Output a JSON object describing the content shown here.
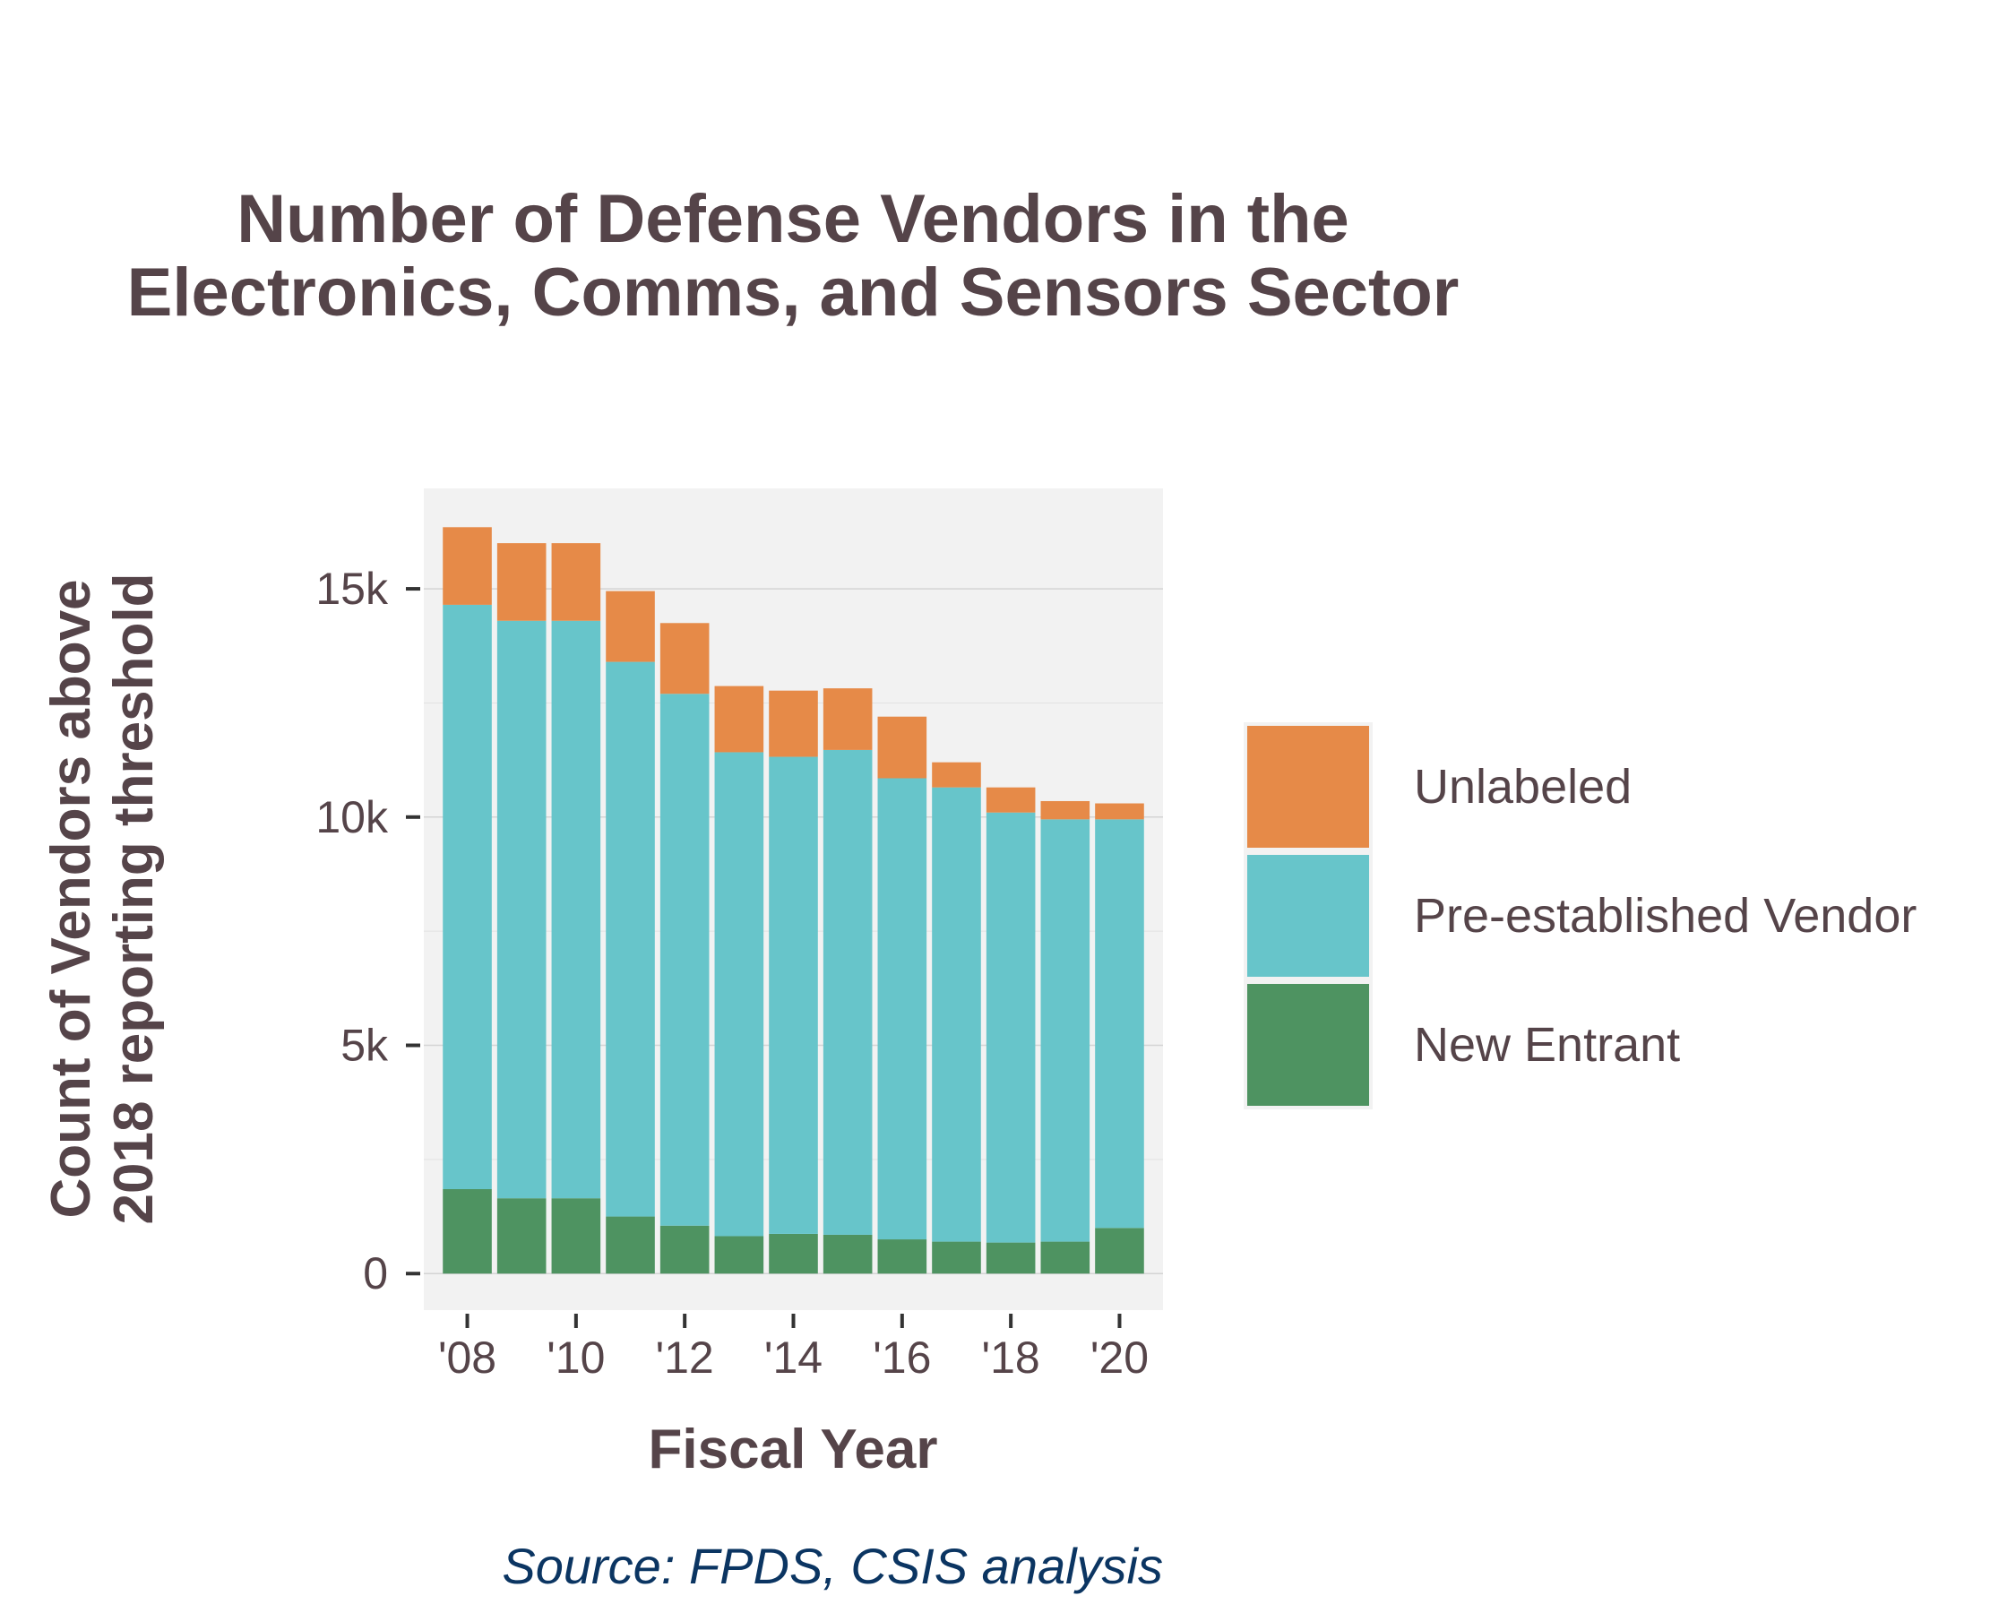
{
  "chart_data": {
    "type": "bar",
    "stacked": true,
    "title": [
      "Number of Defense Vendors in the",
      "Electronics, Comms, and Sensors Sector"
    ],
    "xlabel": "Fiscal Year",
    "ylabel": [
      "Count of Vendors above",
      "2018 reporting threshold"
    ],
    "caption": "Source: FPDS, CSIS analysis",
    "x": [
      2008,
      2009,
      2010,
      2011,
      2012,
      2013,
      2014,
      2015,
      2016,
      2017,
      2018,
      2019,
      2020
    ],
    "x_ticks": [
      2008,
      2010,
      2012,
      2014,
      2016,
      2018,
      2020
    ],
    "x_tick_labels": [
      "'08",
      "'10",
      "'12",
      "'14",
      "'16",
      "'18",
      "'20"
    ],
    "y_ticks": [
      0,
      5000,
      10000,
      15000
    ],
    "y_tick_labels": [
      "0",
      "5k",
      "10k",
      "15k"
    ],
    "ylim": [
      -800,
      17200
    ],
    "grid": true,
    "legend_position": "right",
    "series": [
      {
        "name": "New Entrant",
        "color": "#4e9361",
        "values": [
          1850,
          1650,
          1650,
          1250,
          1050,
          820,
          870,
          850,
          750,
          700,
          680,
          700,
          1000
        ]
      },
      {
        "name": "Pre-established Vendor",
        "color": "#67c5ca",
        "values": [
          12800,
          12650,
          12650,
          12150,
          11650,
          10600,
          10450,
          10620,
          10100,
          9950,
          9420,
          9250,
          8950
        ]
      },
      {
        "name": "Unlabeled",
        "color": "#e68a48",
        "values": [
          1700,
          1700,
          1700,
          1550,
          1550,
          1450,
          1450,
          1350,
          1350,
          550,
          550,
          400,
          350
        ]
      }
    ],
    "legend_order": [
      "Unlabeled",
      "Pre-established Vendor",
      "New Entrant"
    ]
  }
}
